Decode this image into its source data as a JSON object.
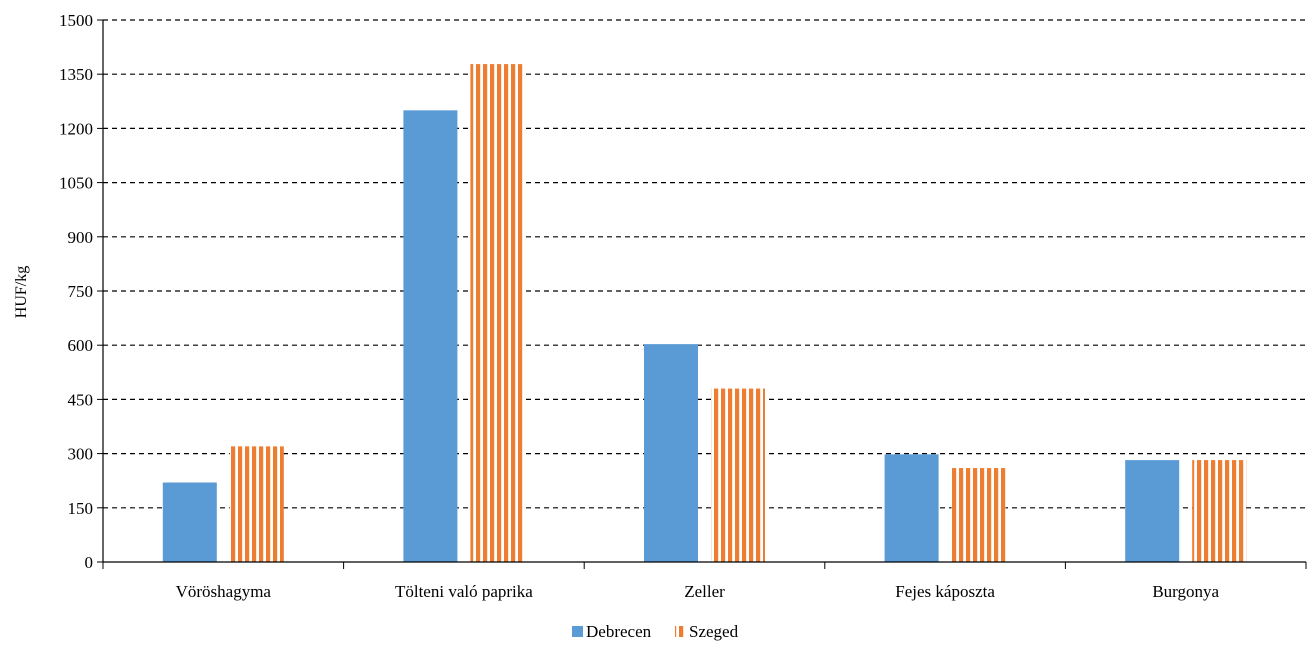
{
  "chart_data": {
    "type": "bar",
    "categories": [
      "Vöröshagyma",
      "Tölteni való paprika",
      "Zeller",
      "Fejes káposzta",
      "Burgonya"
    ],
    "series": [
      {
        "name": "Debrecen",
        "values": [
          220,
          1250,
          603,
          298,
          282
        ],
        "color": "#5B9BD5",
        "pattern": "solid"
      },
      {
        "name": "Szeged",
        "values": [
          320,
          1378,
          480,
          260,
          282
        ],
        "color": "#ED7D31",
        "pattern": "vertical-stripes"
      }
    ],
    "ylabel": "HUF/kg",
    "ylim": [
      0,
      1500
    ],
    "yticks": [
      0,
      150,
      300,
      450,
      600,
      750,
      900,
      1050,
      1200,
      1350,
      1500
    ],
    "grid": "dashed-horizontal",
    "legend": "bottom-center"
  }
}
